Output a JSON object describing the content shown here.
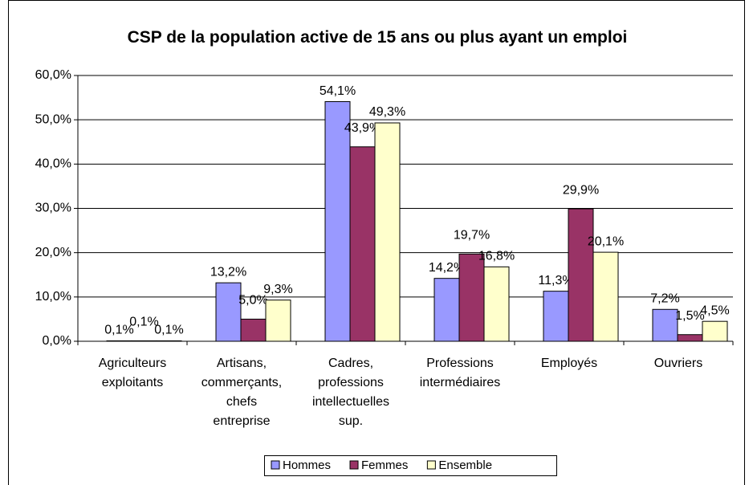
{
  "chart_data": {
    "type": "bar",
    "title": "CSP de la population active de 15 ans ou plus ayant un emploi",
    "categories": [
      "Agriculteurs exploitants",
      "Artisans, commerçants, chefs entreprise",
      "Cadres, professions intellectuelles sup.",
      "Professions intermédiaires",
      "Employés",
      "Ouvriers"
    ],
    "series": [
      {
        "name": "Hommes",
        "color": "#9999ff",
        "values": [
          0.1,
          13.2,
          54.1,
          14.2,
          11.3,
          7.2
        ],
        "value_labels": [
          "0,1%",
          "13,2%",
          "54,1%",
          "14,2%",
          "11,3%",
          "7,2%"
        ]
      },
      {
        "name": "Femmes",
        "color": "#993366",
        "values": [
          0.1,
          5.0,
          43.9,
          19.7,
          29.9,
          1.5
        ],
        "value_labels": [
          "0,1%",
          "5,0%",
          "43,9%",
          "19,7%",
          "29,9%",
          "1,5%"
        ]
      },
      {
        "name": "Ensemble",
        "color": "#ffffcc",
        "values": [
          0.1,
          9.3,
          49.3,
          16.8,
          20.1,
          4.5
        ],
        "value_labels": [
          "0,1%",
          "9,3%",
          "49,3%",
          "16,8%",
          "20,1%",
          "4,5%"
        ]
      }
    ],
    "ylim": [
      0,
      60
    ],
    "yticks": [
      {
        "value": 0,
        "label": "0,0%"
      },
      {
        "value": 10,
        "label": "10,0%"
      },
      {
        "value": 20,
        "label": "20,0%"
      },
      {
        "value": 30,
        "label": "30,0%"
      },
      {
        "value": 40,
        "label": "40,0%"
      },
      {
        "value": 50,
        "label": "50,0%"
      },
      {
        "value": 60,
        "label": "60,0%"
      }
    ],
    "grid": true,
    "legend": "bottom"
  }
}
